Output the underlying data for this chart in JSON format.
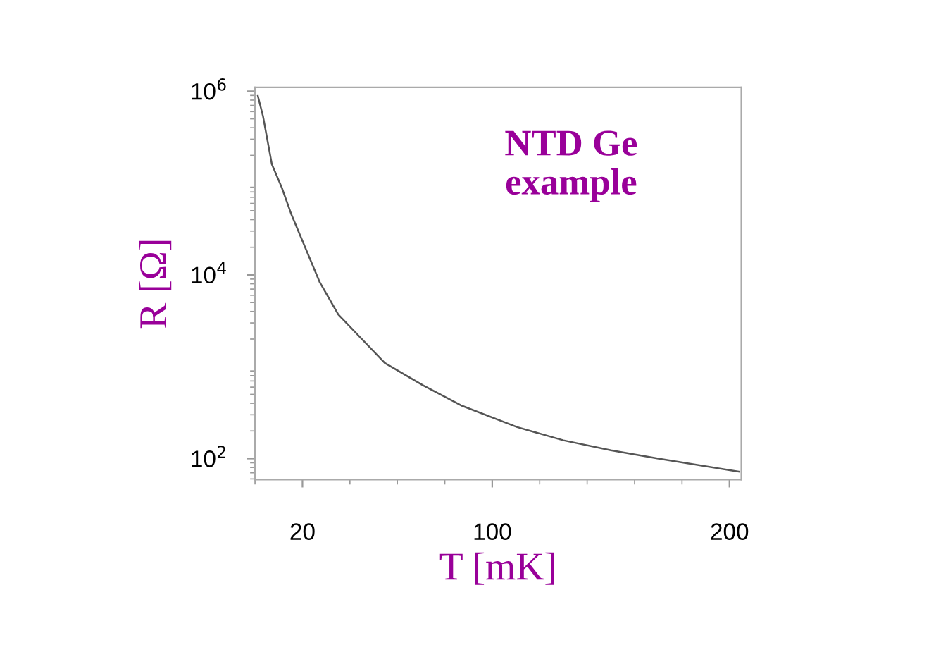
{
  "chart_data": {
    "type": "line",
    "xlabel": "T [mK]",
    "ylabel": "R [Ω]",
    "log": "y",
    "x": [
      1.2,
      3.4,
      7.1,
      11.3,
      15.4,
      27.3,
      35.1,
      54.7,
      70.7,
      86.8,
      110.5,
      130,
      150,
      170,
      204
    ],
    "series": [
      {
        "color": "#555555",
        "values": [
          890000,
          530000,
          160000,
          89000,
          45000,
          8300,
          3700,
          1100,
          630,
          380,
          220,
          158,
          123,
          100,
          72
        ]
      }
    ],
    "xlim": [
      0,
      205
    ],
    "xticks": [
      20,
      100,
      200
    ],
    "ylim": [
      59,
      1100000
    ],
    "yticks": [
      {
        "value": 100,
        "label": "10$^{2}$"
      },
      {
        "value": 10000,
        "label": "10$^{4}$"
      },
      {
        "value": 1000000,
        "label": "10$^{6}$"
      }
    ],
    "annotations": [
      "NTD Ge\nexample"
    ],
    "grid": false,
    "legend": false,
    "marker": "none",
    "line_style": "solid"
  }
}
